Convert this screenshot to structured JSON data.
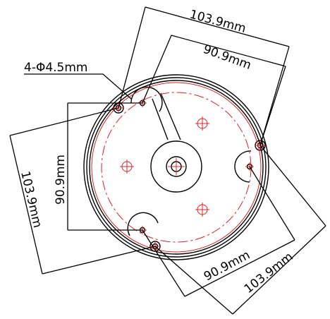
{
  "drawing": {
    "hole_callout": "4-Φ4.5mm",
    "dims": {
      "top_outer": "103.9mm",
      "top_inner": "90.9mm",
      "left_outer": "103.9mm",
      "left_inner": "90.9mm",
      "bottom_inner": "90.9mm",
      "bottom_outer": "103.9mm"
    }
  },
  "colors": {
    "outline": "#000000",
    "center_line": "#e02020"
  }
}
